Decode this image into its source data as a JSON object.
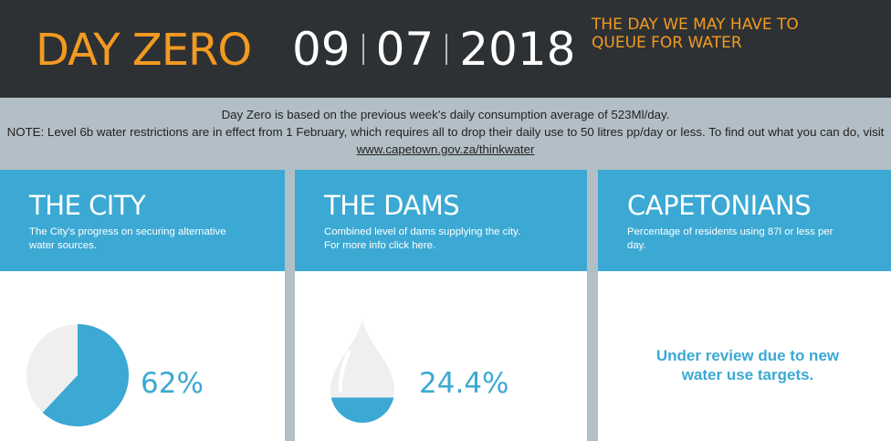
{
  "header": {
    "title": "DAY ZERO",
    "date": {
      "day": "09",
      "month": "07",
      "year": "2018"
    },
    "tagline": "THE DAY WE MAY HAVE TO QUEUE FOR WATER"
  },
  "notes": {
    "line1": "Day Zero is based on the previous week's daily consumption average of 523Ml/day.",
    "line2_prefix": "NOTE: Level 6b water restrictions are in effect from 1 February, which requires all to drop their daily use to 50 litres pp/day or less. To find out what you can do, visit ",
    "link": "www.capetown.gov.za/thinkwater"
  },
  "cards": {
    "city": {
      "title": "THE CITY",
      "description": "The City's progress on securing alternative water sources.",
      "progress_percent": 62,
      "value_label": "62%"
    },
    "dams": {
      "title": "THE DAMS",
      "description": "Combined level of dams supplying the city. For more info click here.",
      "level_percent": 24.4,
      "value_label": "24.4%"
    },
    "capetonians": {
      "title": "CAPETONIANS",
      "description": "Percentage of residents using 87l or less per day.",
      "status": "Under review due to new water use targets."
    }
  },
  "colors": {
    "header_bg": "#2e3134",
    "accent_orange": "#f29a21",
    "accent_blue": "#3ba9d3",
    "page_bg": "#b3bfc6",
    "pie_rest": "#efefef"
  }
}
